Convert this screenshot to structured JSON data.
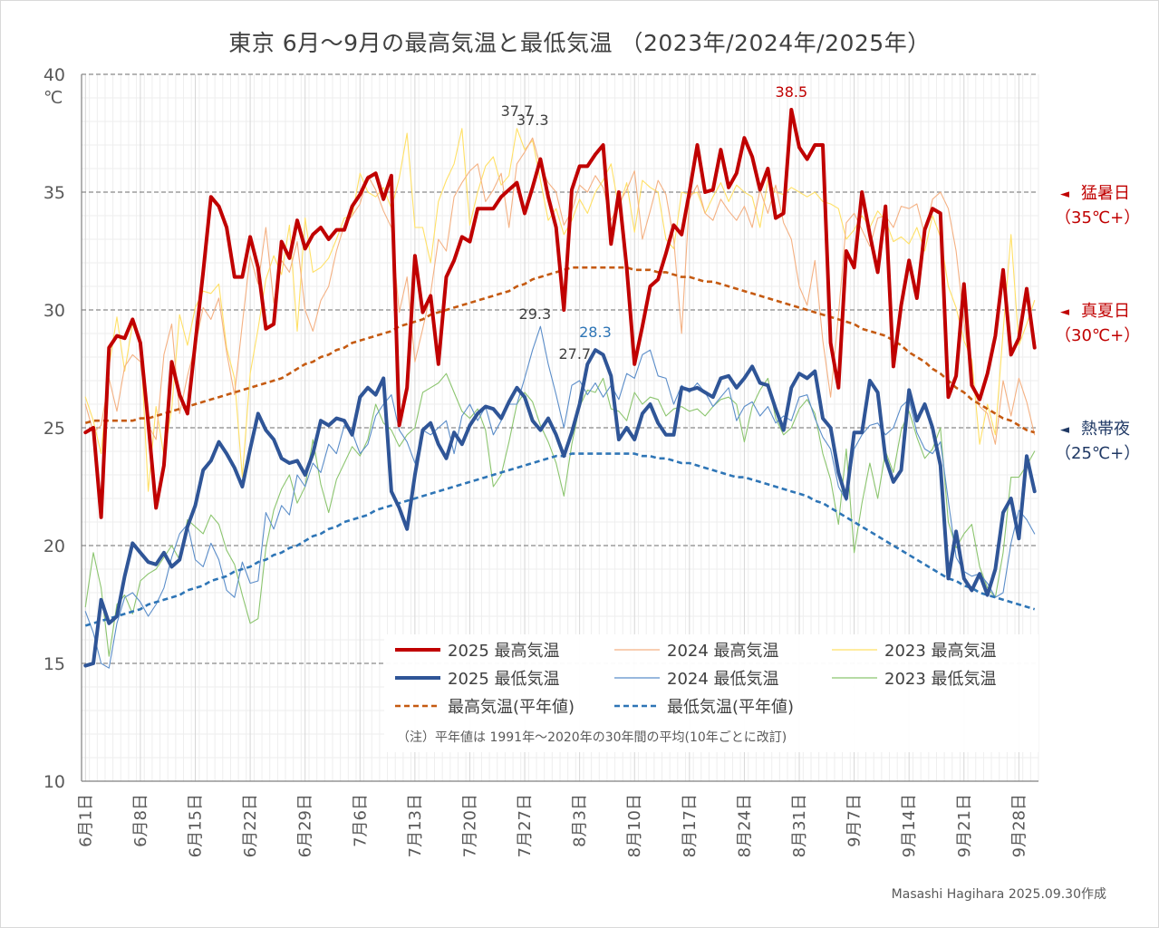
{
  "title": "東京 6月～9月の最高気温と最低気温 （2023年/2024年/2025年）",
  "credit": "Masashi Hagihara  2025.09.30作成",
  "chart_data": {
    "type": "line",
    "ylabel": "℃",
    "ylim": [
      10,
      40
    ],
    "yticks": [
      "40",
      "35",
      "30",
      "25",
      "20",
      "15",
      "10"
    ],
    "xticks": [
      "6月1日",
      "6月8日",
      "6月15日",
      "6月22日",
      "6月29日",
      "7月6日",
      "7月13日",
      "7月20日",
      "7月27日",
      "8月3日",
      "8月10日",
      "8月17日",
      "8月24日",
      "8月31日",
      "9月7日",
      "9月14日",
      "9月21日",
      "9月28日"
    ],
    "days": 122,
    "series": [
      {
        "name": "2025 最高気温",
        "style": "thick",
        "color": "#c00000",
        "values": [
          24.8,
          25.0,
          21.2,
          28.4,
          28.9,
          28.8,
          29.6,
          28.6,
          25.2,
          21.6,
          23.4,
          27.8,
          26.4,
          25.6,
          28.6,
          31.6,
          34.8,
          34.4,
          33.5,
          31.4,
          31.4,
          33.1,
          31.8,
          29.2,
          29.4,
          32.9,
          32.2,
          33.8,
          32.6,
          33.2,
          33.5,
          33.0,
          33.4,
          33.4,
          34.4,
          34.9,
          35.6,
          35.8,
          34.7,
          35.7,
          25.1,
          26.7,
          32.3,
          29.9,
          30.6,
          27.7,
          31.4,
          32.1,
          33.1,
          32.9,
          34.3,
          34.3,
          34.3,
          34.8,
          35.1,
          35.4,
          34.1,
          35.2,
          36.4,
          34.8,
          33.5,
          30.0,
          35.1,
          36.1,
          36.1,
          36.6,
          37.0,
          32.8,
          35.0,
          31.8,
          27.7,
          29.3,
          31.0,
          31.3,
          32.4,
          33.6,
          33.2,
          35.0,
          37.0,
          35.0,
          35.1,
          36.8,
          35.2,
          35.8,
          37.3,
          36.5,
          35.1,
          36.0,
          33.9,
          34.1,
          38.5,
          36.9,
          36.4,
          37.0,
          37.0,
          28.6,
          26.7,
          32.5,
          31.8,
          35.0,
          33.2,
          31.6,
          34.4,
          27.6,
          30.2,
          32.1,
          30.5,
          33.4,
          34.3,
          34.1,
          26.3,
          27.2,
          31.1,
          26.8,
          26.2,
          27.3,
          28.9,
          31.7,
          28.1,
          28.8,
          30.9,
          28.4
        ]
      },
      {
        "name": "2025 最低気温",
        "style": "thick",
        "color": "#2f5597",
        "values": [
          14.9,
          15.0,
          17.7,
          16.7,
          17.0,
          18.7,
          20.1,
          19.7,
          19.3,
          19.2,
          19.7,
          19.1,
          19.4,
          20.8,
          21.7,
          23.2,
          23.6,
          24.4,
          23.9,
          23.3,
          22.5,
          24.1,
          25.6,
          24.9,
          24.5,
          23.7,
          23.5,
          23.6,
          23.0,
          23.9,
          25.3,
          25.1,
          25.4,
          25.3,
          24.7,
          26.3,
          26.7,
          26.4,
          27.1,
          22.3,
          21.6,
          20.7,
          23.0,
          24.9,
          25.2,
          24.3,
          23.7,
          24.8,
          24.3,
          25.1,
          25.6,
          25.9,
          25.8,
          25.4,
          26.1,
          26.7,
          26.3,
          25.3,
          24.9,
          25.4,
          24.7,
          23.8,
          24.8,
          26.0,
          27.7,
          28.3,
          28.1,
          27.2,
          24.5,
          25.0,
          24.5,
          25.6,
          26.0,
          25.2,
          24.7,
          24.7,
          26.7,
          26.6,
          26.7,
          26.5,
          26.3,
          27.1,
          27.2,
          26.7,
          27.1,
          27.6,
          26.9,
          26.8,
          25.8,
          24.9,
          26.7,
          27.3,
          27.1,
          27.4,
          25.4,
          25.0,
          23.1,
          22.0,
          24.8,
          24.8,
          27.0,
          26.5,
          23.7,
          22.7,
          23.2,
          26.6,
          25.3,
          26.0,
          25.0,
          23.4,
          18.6,
          20.6,
          18.6,
          18.1,
          18.8,
          17.9,
          19.0,
          21.4,
          22.0,
          20.3,
          23.8,
          22.3
        ]
      },
      {
        "name": "2024 最高気温",
        "style": "thin",
        "color": "#f4b183",
        "values": [
          26.0,
          24.8,
          25.1,
          27.1,
          25.7,
          27.6,
          28.1,
          27.8,
          25.1,
          24.5,
          28.1,
          29.4,
          25.6,
          27.2,
          28.5,
          30.1,
          29.6,
          30.5,
          28.2,
          26.4,
          29.4,
          32.3,
          31.1,
          33.5,
          30.3,
          32.1,
          31.6,
          32.9,
          30.0,
          29.1,
          30.4,
          31.0,
          32.5,
          33.6,
          34.0,
          34.5,
          35.7,
          35.1,
          34.2,
          33.5,
          29.9,
          31.4,
          27.8,
          29.2,
          30.7,
          33.0,
          32.5,
          34.8,
          35.4,
          35.9,
          36.2,
          34.6,
          35.1,
          35.8,
          33.5,
          36.2,
          36.7,
          37.3,
          36.1,
          35.4,
          35.0,
          33.6,
          34.2,
          35.3,
          35.0,
          35.7,
          35.2,
          33.8,
          34.5,
          35.1,
          35.9,
          33.0,
          34.2,
          35.5,
          34.9,
          33.0,
          29.0,
          34.7,
          35.3,
          34.1,
          33.8,
          34.7,
          34.2,
          33.8,
          34.4,
          33.5,
          35.1,
          34.1,
          35.3,
          33.7,
          33.0,
          31.0,
          30.2,
          32.1,
          28.7,
          26.3,
          29.8,
          33.7,
          34.1,
          33.4,
          32.7,
          33.9,
          34.0,
          33.5,
          34.4,
          34.3,
          34.5,
          33.2,
          34.7,
          35.0,
          34.3,
          32.5,
          29.5,
          26.9,
          25.9,
          25.6,
          24.3,
          27.0,
          25.5,
          27.1,
          26.1,
          24.7
        ]
      },
      {
        "name": "2024 最低気温",
        "style": "thin",
        "color": "#5b8dc9",
        "values": [
          17.2,
          16.3,
          15.0,
          14.8,
          16.7,
          17.8,
          18.0,
          17.6,
          17.0,
          17.5,
          18.2,
          19.5,
          20.5,
          20.9,
          19.4,
          19.1,
          20.1,
          19.4,
          18.1,
          17.8,
          19.3,
          18.4,
          18.5,
          21.4,
          20.7,
          21.7,
          21.3,
          23.0,
          22.5,
          23.5,
          23.1,
          24.3,
          23.9,
          25.1,
          24.8,
          23.9,
          24.3,
          25.5,
          26.0,
          26.4,
          24.9,
          24.4,
          23.5,
          24.9,
          24.7,
          25.0,
          25.3,
          23.9,
          25.5,
          26.0,
          25.3,
          25.9,
          24.7,
          25.3,
          26.0,
          26.0,
          27.1,
          28.3,
          29.3,
          27.7,
          26.4,
          25.0,
          26.8,
          27.0,
          26.4,
          26.9,
          26.3,
          26.8,
          26.2,
          27.3,
          27.1,
          28.1,
          28.3,
          27.2,
          27.1,
          26.0,
          26.8,
          26.5,
          26.9,
          26.5,
          25.9,
          26.3,
          26.7,
          25.3,
          25.9,
          26.1,
          25.5,
          25.9,
          25.2,
          25.5,
          25.3,
          26.3,
          26.4,
          25.4,
          24.6,
          24.1,
          22.5,
          21.9,
          24.1,
          24.7,
          25.1,
          25.2,
          24.7,
          25.0,
          25.9,
          26.2,
          24.8,
          24.1,
          23.9,
          24.4,
          21.9,
          19.5,
          18.9,
          18.7,
          18.8,
          18.4,
          17.8,
          18.0,
          20.1,
          21.5,
          21.1,
          20.5
        ]
      },
      {
        "name": "2023 最高気温",
        "style": "thin",
        "color": "#ffe066",
        "values": [
          26.3,
          25.3,
          23.9,
          27.6,
          29.7,
          27.4,
          29.4,
          28.8,
          22.3,
          25.9,
          23.8,
          25.8,
          29.8,
          28.5,
          30.1,
          30.8,
          30.7,
          31.1,
          28.4,
          27.1,
          22.9,
          27.3,
          29.2,
          31.3,
          32.3,
          31.5,
          33.6,
          29.1,
          33.9,
          31.6,
          31.8,
          32.2,
          33.0,
          33.9,
          34.0,
          35.8,
          35.0,
          34.8,
          35.2,
          34.3,
          35.6,
          37.5,
          33.5,
          33.5,
          32.0,
          34.6,
          35.5,
          36.2,
          37.7,
          33.6,
          35.0,
          36.1,
          36.5,
          35.3,
          35.7,
          37.7,
          36.8,
          37.2,
          35.5,
          33.8,
          34.3,
          33.2,
          33.8,
          34.7,
          34.1,
          35.0,
          35.5,
          36.2,
          34.3,
          35.4,
          33.3,
          35.5,
          35.2,
          35.0,
          33.0,
          32.6,
          35.0,
          34.9,
          35.0,
          34.1,
          34.8,
          35.4,
          34.6,
          35.3,
          35.0,
          34.8,
          33.5,
          35.5,
          35.0,
          34.9,
          35.2,
          35.0,
          34.8,
          35.0,
          34.6,
          34.5,
          34.3,
          33.0,
          33.4,
          34.0,
          33.5,
          34.2,
          33.8,
          32.9,
          33.1,
          32.8,
          33.5,
          32.5,
          34.0,
          33.1,
          31.0,
          30.1,
          28.7,
          27.9,
          24.3,
          26.0,
          24.7,
          29.1,
          33.2,
          28.5,
          29.4,
          30.4
        ]
      },
      {
        "name": "2023 最低気温",
        "style": "thin",
        "color": "#8cc56f",
        "values": [
          17.4,
          19.7,
          18.2,
          15.3,
          17.5,
          17.9,
          17.1,
          18.5,
          18.8,
          19.0,
          19.5,
          20.0,
          19.4,
          21.1,
          20.8,
          20.5,
          21.3,
          20.9,
          19.8,
          19.2,
          17.9,
          16.7,
          16.9,
          19.9,
          21.5,
          22.4,
          23.0,
          21.8,
          22.5,
          24.5,
          22.6,
          21.4,
          22.8,
          23.5,
          24.2,
          23.8,
          24.5,
          26.0,
          25.2,
          24.9,
          24.2,
          24.7,
          25.0,
          26.5,
          26.7,
          26.9,
          27.3,
          26.5,
          25.7,
          25.4,
          25.8,
          24.9,
          22.5,
          23.0,
          24.4,
          26.0,
          26.5,
          26.1,
          25.1,
          24.4,
          23.5,
          22.1,
          24.3,
          25.9,
          26.6,
          26.5,
          27.1,
          25.8,
          25.7,
          25.3,
          26.5,
          26.0,
          26.3,
          26.2,
          25.5,
          25.8,
          25.9,
          25.7,
          25.8,
          25.5,
          25.9,
          26.2,
          26.3,
          26.0,
          24.4,
          25.9,
          26.6,
          27.1,
          25.4,
          24.7,
          25.0,
          25.8,
          26.2,
          25.6,
          23.9,
          22.8,
          20.9,
          24.1,
          19.7,
          21.8,
          23.5,
          22.0,
          24.0,
          23.1,
          24.9,
          25.7,
          24.6,
          23.7,
          24.1,
          25.0,
          21.0,
          19.9,
          20.5,
          20.9,
          19.1,
          18.2,
          17.8,
          19.7,
          22.9,
          22.9,
          23.4,
          24.0
        ]
      },
      {
        "name": "最高気温(平年値)",
        "style": "dash",
        "color": "#c55a11",
        "values": [
          25.2,
          25.3,
          25.3,
          25.3,
          25.3,
          25.3,
          25.3,
          25.4,
          25.4,
          25.5,
          25.6,
          25.7,
          25.8,
          25.9,
          26.0,
          26.1,
          26.2,
          26.3,
          26.4,
          26.5,
          26.6,
          26.7,
          26.8,
          26.9,
          27.0,
          27.1,
          27.3,
          27.5,
          27.7,
          27.8,
          28.0,
          28.1,
          28.3,
          28.4,
          28.6,
          28.7,
          28.8,
          28.9,
          29.0,
          29.1,
          29.3,
          29.4,
          29.5,
          29.6,
          29.8,
          29.9,
          30.0,
          30.1,
          30.2,
          30.3,
          30.4,
          30.5,
          30.6,
          30.7,
          30.8,
          31.0,
          31.1,
          31.3,
          31.4,
          31.5,
          31.6,
          31.7,
          31.8,
          31.8,
          31.8,
          31.8,
          31.8,
          31.8,
          31.8,
          31.8,
          31.7,
          31.7,
          31.7,
          31.6,
          31.6,
          31.5,
          31.4,
          31.4,
          31.3,
          31.2,
          31.2,
          31.1,
          31.0,
          30.9,
          30.8,
          30.7,
          30.6,
          30.5,
          30.4,
          30.3,
          30.2,
          30.1,
          30.0,
          29.9,
          29.8,
          29.7,
          29.6,
          29.5,
          29.4,
          29.2,
          29.1,
          29.0,
          28.9,
          28.7,
          28.5,
          28.2,
          28.0,
          27.8,
          27.5,
          27.3,
          27.0,
          26.7,
          26.5,
          26.2,
          26.0,
          25.8,
          25.6,
          25.4,
          25.3,
          25.1,
          24.9,
          24.8
        ]
      },
      {
        "name": "最低気温(平年値)",
        "style": "dash",
        "color": "#2e75b6",
        "values": [
          16.6,
          16.7,
          16.8,
          16.9,
          17.0,
          17.1,
          17.2,
          17.3,
          17.5,
          17.6,
          17.7,
          17.8,
          17.9,
          18.1,
          18.2,
          18.3,
          18.5,
          18.6,
          18.7,
          18.9,
          19.0,
          19.1,
          19.3,
          19.4,
          19.6,
          19.7,
          19.9,
          20.0,
          20.2,
          20.4,
          20.5,
          20.7,
          20.8,
          21.0,
          21.1,
          21.2,
          21.3,
          21.5,
          21.6,
          21.7,
          21.8,
          21.9,
          22.0,
          22.1,
          22.2,
          22.3,
          22.4,
          22.5,
          22.6,
          22.7,
          22.8,
          22.9,
          23.0,
          23.1,
          23.2,
          23.3,
          23.4,
          23.5,
          23.6,
          23.7,
          23.8,
          23.8,
          23.9,
          23.9,
          23.9,
          23.9,
          23.9,
          23.9,
          23.9,
          23.9,
          23.9,
          23.8,
          23.8,
          23.7,
          23.7,
          23.6,
          23.5,
          23.5,
          23.4,
          23.3,
          23.2,
          23.1,
          23.0,
          22.9,
          22.9,
          22.8,
          22.7,
          22.6,
          22.5,
          22.4,
          22.3,
          22.2,
          22.1,
          21.9,
          21.8,
          21.6,
          21.4,
          21.2,
          21.0,
          20.8,
          20.6,
          20.4,
          20.2,
          20.0,
          19.8,
          19.6,
          19.4,
          19.2,
          19.0,
          18.8,
          18.6,
          18.5,
          18.3,
          18.2,
          18.0,
          17.9,
          17.8,
          17.7,
          17.6,
          17.5,
          17.4,
          17.3
        ]
      }
    ],
    "annotations": [
      {
        "text": "38.5",
        "day": 90,
        "value": 38.5,
        "color": "#c00000"
      },
      {
        "text": "37.7",
        "day": 55,
        "value": 37.7,
        "color": "#404040"
      },
      {
        "text": "37.3",
        "day": 57,
        "value": 37.3,
        "color": "#404040"
      },
      {
        "text": "29.3",
        "day": 58,
        "value": 29.3,
        "color": "#404040"
      },
      {
        "text": "28.3",
        "day": 65,
        "value": 28.3,
        "color": "#2e75b6"
      },
      {
        "text": "27.7",
        "day": 64,
        "value": 27.7,
        "color": "#404040"
      }
    ],
    "legend": [
      {
        "label": "2025 最高気温",
        "series": 0
      },
      {
        "label": "2024 最高気温",
        "series": 2
      },
      {
        "label": "2023 最高気温",
        "series": 4
      },
      {
        "label": "2025 最低気温",
        "series": 1
      },
      {
        "label": "2024 最低気温",
        "series": 3
      },
      {
        "label": "2023 最低気温",
        "series": 5
      },
      {
        "label": "最高気温(平年値)",
        "series": 6
      },
      {
        "label": "最低気温(平年値)",
        "series": 7
      }
    ],
    "note": "（注）平年値は 1991年～2020年の30年間の平均(10年ごとに改訂)",
    "thresholds": [
      {
        "marker": "◄",
        "label": "猛暑日",
        "sub": "（35℃+）",
        "value": 35,
        "color": "#c00000"
      },
      {
        "marker": "◄",
        "label": "真夏日",
        "sub": "（30℃+）",
        "value": 30,
        "color": "#c00000"
      },
      {
        "marker": "◄",
        "label": "熱帯夜",
        "sub": "（25℃+）",
        "value": 25,
        "color": "#1f3864"
      }
    ]
  }
}
